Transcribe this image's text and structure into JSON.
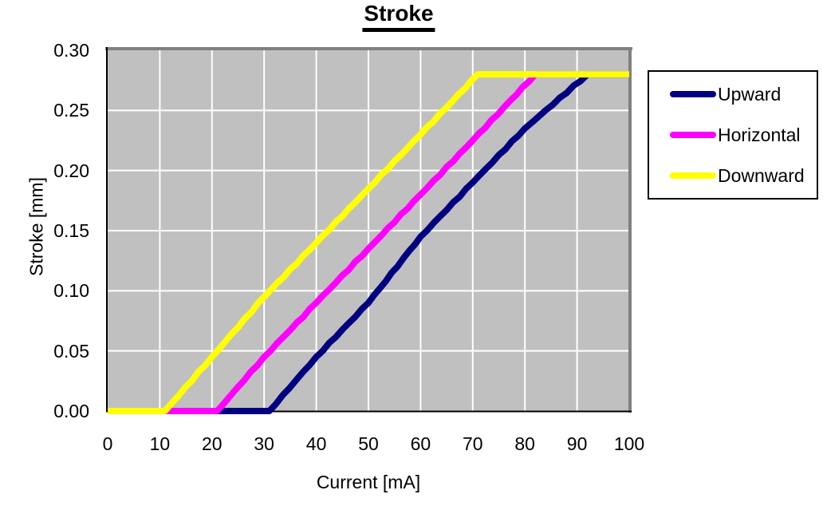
{
  "chart_data": {
    "type": "line",
    "title": "Stroke",
    "xlabel": "Current [mA]",
    "ylabel": "Stroke [mm]",
    "xlim": [
      0,
      100
    ],
    "ylim": [
      0,
      0.3
    ],
    "grid": true,
    "legend_position": "right",
    "colors": {
      "plot_background": "#c0c0c0",
      "gridline": "#ffffff",
      "border_shadow": "#808080",
      "axis": "#000000",
      "text": "#000000"
    },
    "xticks": [
      {
        "v": 0,
        "label": "0"
      },
      {
        "v": 10,
        "label": "10"
      },
      {
        "v": 20,
        "label": "20"
      },
      {
        "v": 30,
        "label": "30"
      },
      {
        "v": 40,
        "label": "40"
      },
      {
        "v": 50,
        "label": "50"
      },
      {
        "v": 60,
        "label": "60"
      },
      {
        "v": 70,
        "label": "70"
      },
      {
        "v": 80,
        "label": "80"
      },
      {
        "v": 90,
        "label": "90"
      },
      {
        "v": 100,
        "label": "100"
      }
    ],
    "yticks": [
      {
        "v": 0.0,
        "label": "0.00"
      },
      {
        "v": 0.05,
        "label": "0.05"
      },
      {
        "v": 0.1,
        "label": "0.10"
      },
      {
        "v": 0.15,
        "label": "0.15"
      },
      {
        "v": 0.2,
        "label": "0.20"
      },
      {
        "v": 0.25,
        "label": "0.25"
      },
      {
        "v": 0.3,
        "label": "0.30"
      }
    ],
    "series": [
      {
        "name": "Upward",
        "color": "#000080",
        "points": [
          [
            0,
            0
          ],
          [
            10,
            0
          ],
          [
            20,
            0
          ],
          [
            31,
            0
          ],
          [
            40,
            0.045
          ],
          [
            50,
            0.09
          ],
          [
            60,
            0.145
          ],
          [
            70,
            0.19
          ],
          [
            80,
            0.235
          ],
          [
            92,
            0.28
          ],
          [
            100,
            0.28
          ]
        ]
      },
      {
        "name": "Horizontal",
        "color": "#ff00ff",
        "points": [
          [
            0,
            0
          ],
          [
            10,
            0
          ],
          [
            21,
            0
          ],
          [
            30,
            0.045
          ],
          [
            40,
            0.09
          ],
          [
            50,
            0.135
          ],
          [
            60,
            0.18
          ],
          [
            70,
            0.225
          ],
          [
            82,
            0.28
          ],
          [
            100,
            0.28
          ]
        ]
      },
      {
        "name": "Downward",
        "color": "#ffff00",
        "points": [
          [
            0,
            0
          ],
          [
            11,
            0
          ],
          [
            20,
            0.045
          ],
          [
            30,
            0.095
          ],
          [
            40,
            0.14
          ],
          [
            50,
            0.185
          ],
          [
            60,
            0.23
          ],
          [
            71,
            0.28
          ],
          [
            100,
            0.28
          ]
        ]
      }
    ]
  }
}
